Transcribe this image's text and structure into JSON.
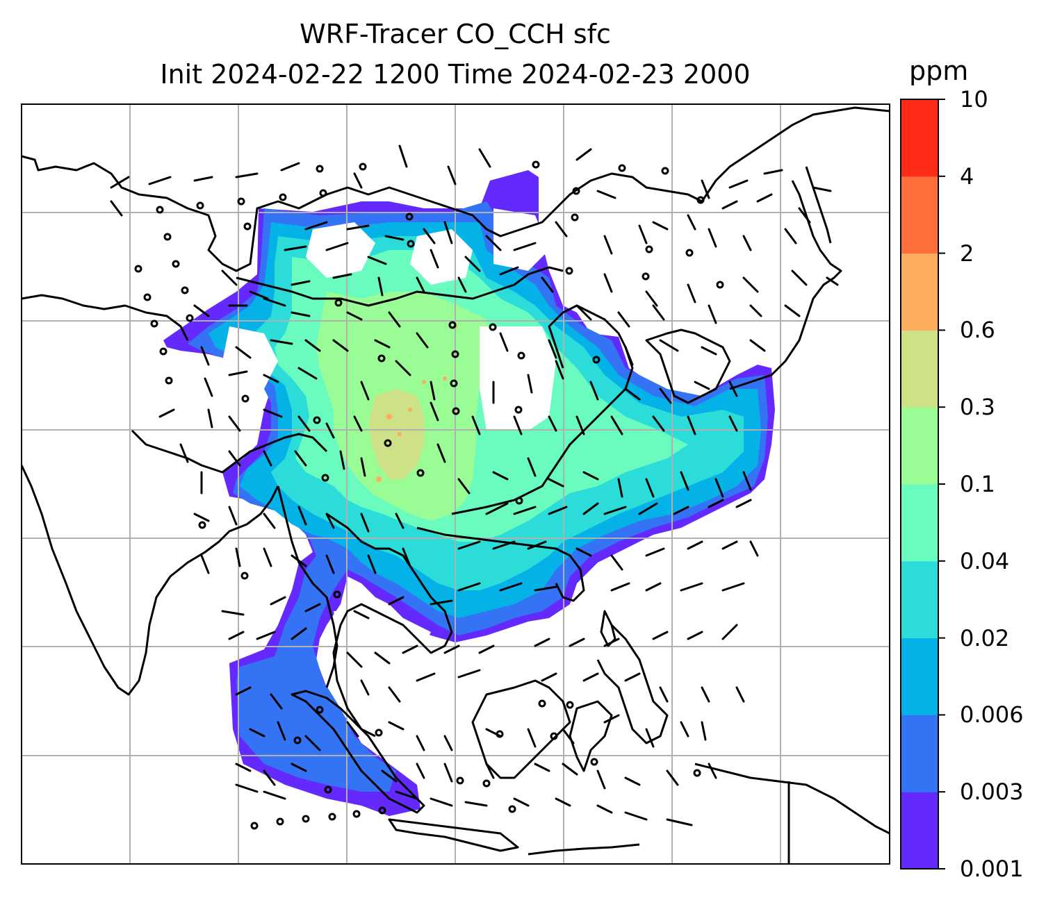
{
  "title": {
    "line1": "WRF-Tracer CO_CCH sfc",
    "line2": "Init 2024-02-22 1200 Time 2024-02-23 2000"
  },
  "colorbar": {
    "unit": "ppm",
    "levels": [
      "0.001",
      "0.003",
      "0.006",
      "0.02",
      "0.04",
      "0.1",
      "0.3",
      "0.6",
      "2",
      "4",
      "10"
    ],
    "colors": [
      "#6429fc",
      "#3474f4",
      "#04b2e8",
      "#2cdcd8",
      "#6afcbe",
      "#9afc95",
      "#cee186",
      "#fcad5e",
      "#fe6f3b",
      "#ff2a17"
    ]
  },
  "map": {
    "features": [
      "coastlines",
      "country-borders",
      "lat-lon-gridlines",
      "wind-barbs",
      "tracer-concentration-fill"
    ],
    "background": "#ffffff"
  }
}
